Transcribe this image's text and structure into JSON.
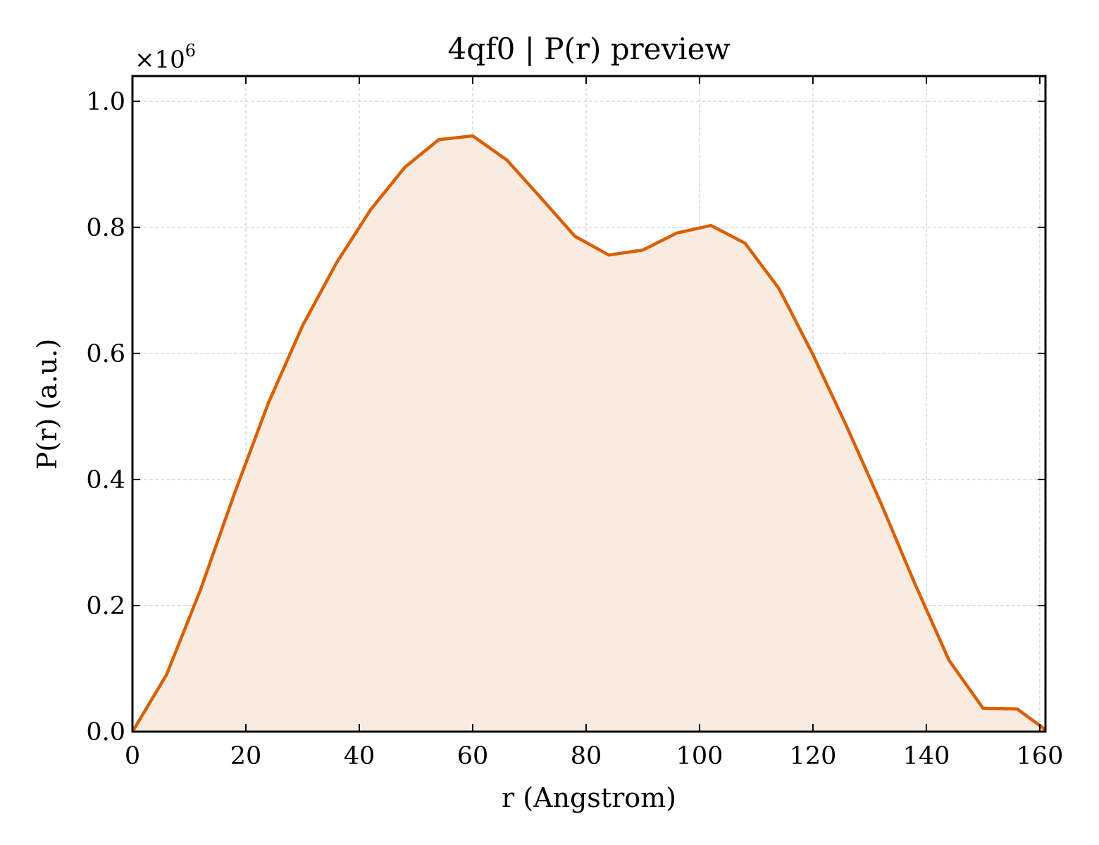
{
  "chart_data": {
    "type": "area",
    "title": "4qf0 | P(r) preview",
    "xlabel": "r (Angstrom)",
    "ylabel": "P(r) (a.u.)",
    "y_offset_prefix": "×10",
    "y_offset_exponent": "6",
    "xlim": [
      0,
      161
    ],
    "ylim": [
      0,
      1.04
    ],
    "y_scale": 1000000,
    "x_ticks": [
      0,
      20,
      40,
      60,
      80,
      100,
      120,
      140,
      160
    ],
    "x_tick_labels": [
      "0",
      "20",
      "40",
      "60",
      "80",
      "100",
      "120",
      "140",
      "160"
    ],
    "y_ticks": [
      0,
      0.2,
      0.4,
      0.6,
      0.8,
      1.0
    ],
    "y_tick_labels": [
      "0.0",
      "0.2",
      "0.4",
      "0.6",
      "0.8",
      "1.0"
    ],
    "grid": true,
    "line_color": "#d95f02",
    "fill_color": "#f9ebe0",
    "x": [
      0,
      6,
      12,
      18,
      24,
      30,
      36,
      42,
      48,
      54,
      60,
      66,
      72,
      78,
      84,
      90,
      96,
      102,
      108,
      114,
      120,
      126,
      132,
      138,
      144,
      150,
      156,
      161
    ],
    "y": [
      0.0,
      0.09,
      0.225,
      0.378,
      0.522,
      0.644,
      0.744,
      0.828,
      0.895,
      0.939,
      0.945,
      0.907,
      0.847,
      0.786,
      0.756,
      0.764,
      0.791,
      0.803,
      0.775,
      0.703,
      0.598,
      0.483,
      0.362,
      0.234,
      0.113,
      0.037,
      0.036,
      0.003
    ]
  }
}
